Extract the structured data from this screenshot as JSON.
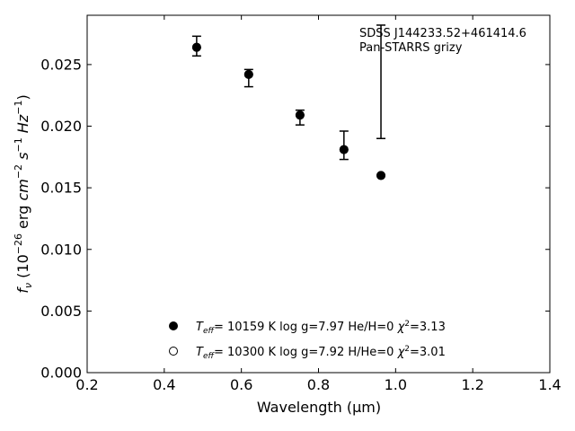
{
  "chart_data": {
    "type": "scatter",
    "annotation": [
      "SDSS J144233.52+461414.6",
      "Pan-STARRS grizy"
    ],
    "xlabel": "Wavelength (μm)",
    "ylabel": "f_ν (10^-26 erg cm^-2 s^-1 Hz^-1)",
    "xlim": [
      0.2,
      1.4
    ],
    "ylim": [
      0.0,
      0.029
    ],
    "x_ticks": [
      0.2,
      0.4,
      0.6,
      0.8,
      1.0,
      1.2,
      1.4
    ],
    "x_tick_labels": [
      "0.2",
      "0.4",
      "0.6",
      "0.8",
      "1.0",
      "1.2",
      "1.4"
    ],
    "y_ticks": [
      0.0,
      0.005,
      0.01,
      0.015,
      0.02,
      0.025
    ],
    "y_tick_labels": [
      "0.000",
      "0.005",
      "0.010",
      "0.015",
      "0.020",
      "0.025"
    ],
    "observed": {
      "x": [
        0.484,
        0.619,
        0.752,
        0.866,
        0.962
      ],
      "y": [
        0.0264,
        0.0242,
        0.0209,
        0.0181,
        null
      ],
      "err_low": [
        0.0257,
        0.0232,
        0.0201,
        0.0173,
        0.019
      ],
      "err_high": [
        0.0273,
        0.0246,
        0.0213,
        0.0196,
        0.0282
      ]
    },
    "series": [
      {
        "name": "T_eff= 10159 K  log g=7.97  He/H=0  χ²=3.13",
        "marker": "filled-circle",
        "x": [
          0.484,
          0.619,
          0.752,
          0.866,
          0.962
        ],
        "y": [
          0.0264,
          0.0242,
          0.0209,
          0.0181,
          0.016
        ]
      },
      {
        "name": "T_eff= 10300 K  log g=7.92  H/He=0  χ²=3.01",
        "marker": "open-circle",
        "x": [
          0.484,
          0.619,
          0.752,
          0.866,
          0.962
        ],
        "y": [
          0.0264,
          0.0242,
          0.0209,
          0.0181,
          0.016
        ]
      }
    ],
    "legend_position": "lower-center",
    "grid": false,
    "colors": {
      "marker": "#000000",
      "axis": "#000000"
    }
  }
}
